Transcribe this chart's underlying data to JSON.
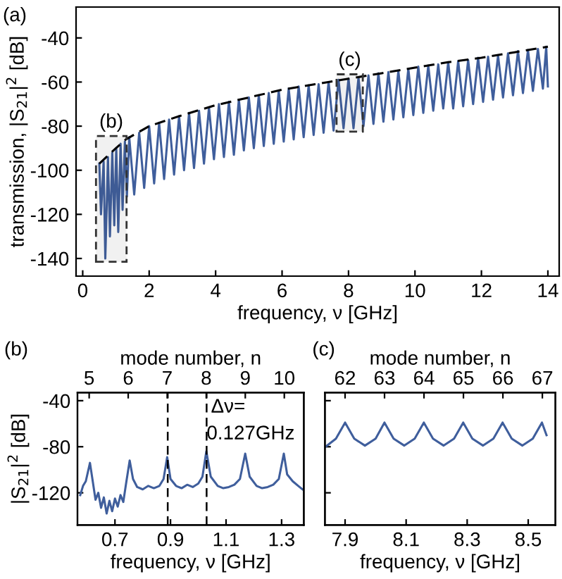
{
  "chart_data": [
    {
      "type": "line",
      "title": "(a)",
      "xlabel": "frequency, ν [GHz]",
      "ylabel": "transmission, |S$_{21}$|$^{2}$ [dB]",
      "xlim": [
        -0.2,
        14.34
      ],
      "xticks": [
        0,
        2,
        4,
        6,
        8,
        10,
        12,
        14
      ],
      "ylim": [
        -148,
        -26
      ],
      "yticks": [
        -140,
        -120,
        -100,
        -80,
        -60,
        -40
      ],
      "grid": false,
      "legend": false,
      "bands": [
        {
          "axis": "x",
          "from": 0.4,
          "to": 1.32,
          "label": "(b)",
          "color": "#333333"
        },
        {
          "axis": "x",
          "from": 7.64,
          "to": 8.43,
          "label": "(c)",
          "color": "#333333"
        }
      ],
      "series": [
        {
          "color": "#3f5e9c",
          "line_style": "solid",
          "x": [
            0.5,
            0.55,
            0.63,
            0.68,
            0.72,
            0.76,
            0.82,
            0.89,
            0.95,
            1.01,
            1.07,
            1.14,
            1.2,
            1.27,
            1.33,
            1.4,
            1.55,
            1.7,
            1.85,
            2.0,
            2.15,
            2.3,
            2.45,
            2.6,
            2.75,
            2.9,
            3.05,
            3.2,
            3.35,
            3.5,
            3.65,
            3.8,
            3.95,
            4.1,
            4.25,
            4.4,
            4.55,
            4.7,
            4.85,
            5.0,
            5.15,
            5.3,
            5.45,
            5.6,
            5.75,
            5.9,
            6.05,
            6.2,
            6.35,
            6.5,
            6.65,
            6.8,
            6.95,
            7.1,
            7.25,
            7.4,
            7.55,
            7.7,
            7.85,
            8.0,
            8.15,
            8.3,
            8.45,
            8.6,
            8.75,
            8.9,
            9.05,
            9.2,
            9.35,
            9.5,
            9.65,
            9.8,
            9.95,
            10.1,
            10.25,
            10.4,
            10.55,
            10.7,
            10.85,
            11.0,
            11.15,
            11.3,
            11.45,
            11.6,
            11.75,
            11.9,
            12.05,
            12.2,
            12.35,
            12.5,
            12.65,
            12.8,
            12.95,
            13.1,
            13.25,
            13.4,
            13.55,
            13.7,
            13.85,
            13.95,
            14.0
          ],
          "values": [
            -97,
            -120,
            -96,
            -140,
            -118,
            -94,
            -130,
            -92,
            -125,
            -90,
            -128,
            -88,
            -118,
            -87,
            -112,
            -85,
            -111,
            -83,
            -108,
            -80,
            -106,
            -78.5,
            -104,
            -77,
            -102,
            -75.5,
            -100,
            -74,
            -99,
            -73,
            -97,
            -71.5,
            -95,
            -70,
            -94,
            -69,
            -93,
            -68,
            -91,
            -67,
            -90,
            -66,
            -89,
            -65,
            -88,
            -64,
            -87,
            -63,
            -86,
            -62,
            -85,
            -61.5,
            -84,
            -61,
            -83,
            -60,
            -82,
            -59,
            -81,
            -58.5,
            -81,
            -58,
            -80,
            -57,
            -79,
            -56,
            -78,
            -55.5,
            -77,
            -55,
            -76,
            -54,
            -75,
            -53,
            -74,
            -52.5,
            -73,
            -52,
            -72,
            -51,
            -72,
            -50.5,
            -71,
            -50,
            -70,
            -49,
            -69,
            -48.5,
            -68,
            -48,
            -67,
            -47,
            -66,
            -46,
            -65,
            -45.5,
            -64,
            -45,
            -63,
            -44,
            -62
          ]
        },
        {
          "type": "line",
          "color": "#000000",
          "line_style": "dashed",
          "x": [
            0.5,
            1.0,
            1.3,
            2,
            3,
            4,
            5,
            6,
            7,
            8,
            9,
            10,
            11,
            12,
            13,
            14
          ],
          "values": [
            -97,
            -90,
            -86,
            -80,
            -75,
            -70.5,
            -67,
            -63.5,
            -61,
            -58.5,
            -56,
            -53.5,
            -51,
            -49,
            -46.5,
            -44
          ]
        }
      ]
    },
    {
      "type": "line",
      "title": "(b)",
      "xlabel": "frequency, ν [GHz]",
      "ylabel": "|S$_{21}$|$^{2}$ [dB]",
      "x2label": "mode number, n",
      "xlim": [
        0.565,
        1.38
      ],
      "xticks": [
        0.7,
        0.9,
        1.1,
        1.3
      ],
      "x2lim": [
        4.7,
        10.5
      ],
      "x2ticks": [
        5,
        6,
        7,
        8,
        9,
        10
      ],
      "ylim": [
        -148,
        -33
      ],
      "yticks": [
        -120,
        -80,
        -40
      ],
      "grid": false,
      "legend": false,
      "ref_lines": [
        {
          "axis": "x",
          "value": 0.89,
          "line_style": "dashed",
          "color": "#000000"
        },
        {
          "axis": "x",
          "value": 1.03,
          "line_style": "dashed",
          "color": "#000000"
        }
      ],
      "annotations": [
        {
          "text": "Δν=\n0.127GHz",
          "x": 1.03,
          "y": -38
        }
      ],
      "series": [
        {
          "color": "#3f5e9c",
          "line_style": "solid",
          "x": [
            0.575,
            0.585,
            0.595,
            0.61,
            0.62,
            0.63,
            0.64,
            0.65,
            0.66,
            0.67,
            0.68,
            0.69,
            0.7,
            0.71,
            0.72,
            0.73,
            0.74,
            0.753,
            0.765,
            0.78,
            0.8,
            0.82,
            0.84,
            0.86,
            0.875,
            0.888,
            0.9,
            0.92,
            0.94,
            0.96,
            0.98,
            1.0,
            1.015,
            1.029,
            1.045,
            1.07,
            1.09,
            1.11,
            1.13,
            1.15,
            1.169,
            1.185,
            1.21,
            1.23,
            1.25,
            1.27,
            1.29,
            1.308,
            1.32,
            1.34,
            1.36,
            1.375
          ],
          "values": [
            -122,
            -114,
            -110,
            -94,
            -110,
            -126,
            -120,
            -133,
            -124,
            -138,
            -127,
            -136,
            -125,
            -132,
            -122,
            -128,
            -112,
            -92,
            -108,
            -115,
            -117,
            -114,
            -116,
            -114,
            -108,
            -89,
            -108,
            -114,
            -116,
            -113,
            -115,
            -112,
            -106,
            -84,
            -106,
            -114,
            -116,
            -115,
            -113,
            -108,
            -86,
            -106,
            -114,
            -116,
            -115,
            -113,
            -108,
            -86,
            -104,
            -110,
            -114,
            -117
          ]
        }
      ]
    },
    {
      "type": "line",
      "title": "(c)",
      "xlabel": "frequency, ν [GHz]",
      "x2label": "mode number, n",
      "xlim": [
        7.834,
        8.589
      ],
      "xticks": [
        7.9,
        8.1,
        8.3,
        8.5
      ],
      "x2lim": [
        61.49,
        67.33
      ],
      "x2ticks": [
        62,
        63,
        64,
        65,
        66,
        67
      ],
      "ylim": [
        -148,
        -33
      ],
      "yticks": [
        {
          "value": -120,
          "label": null
        },
        {
          "value": -80,
          "label": null
        },
        {
          "value": -40,
          "label": null
        }
      ],
      "tick_labels": "x",
      "grid": false,
      "legend": false,
      "series": [
        {
          "color": "#3f5e9c",
          "line_style": "solid",
          "x": [
            7.836,
            7.87,
            7.9,
            7.93,
            7.965,
            8.0,
            8.029,
            8.059,
            8.094,
            8.128,
            8.158,
            8.188,
            8.223,
            8.257,
            8.287,
            8.317,
            8.352,
            8.386,
            8.416,
            8.446,
            8.481,
            8.515,
            8.545,
            8.56
          ],
          "values": [
            -80,
            -73,
            -59,
            -73,
            -79,
            -73,
            -59,
            -73,
            -79,
            -73,
            -59,
            -73,
            -79,
            -73,
            -59,
            -73,
            -79,
            -73,
            -59,
            -73,
            -79,
            -73,
            -59,
            -70
          ]
        }
      ]
    }
  ]
}
